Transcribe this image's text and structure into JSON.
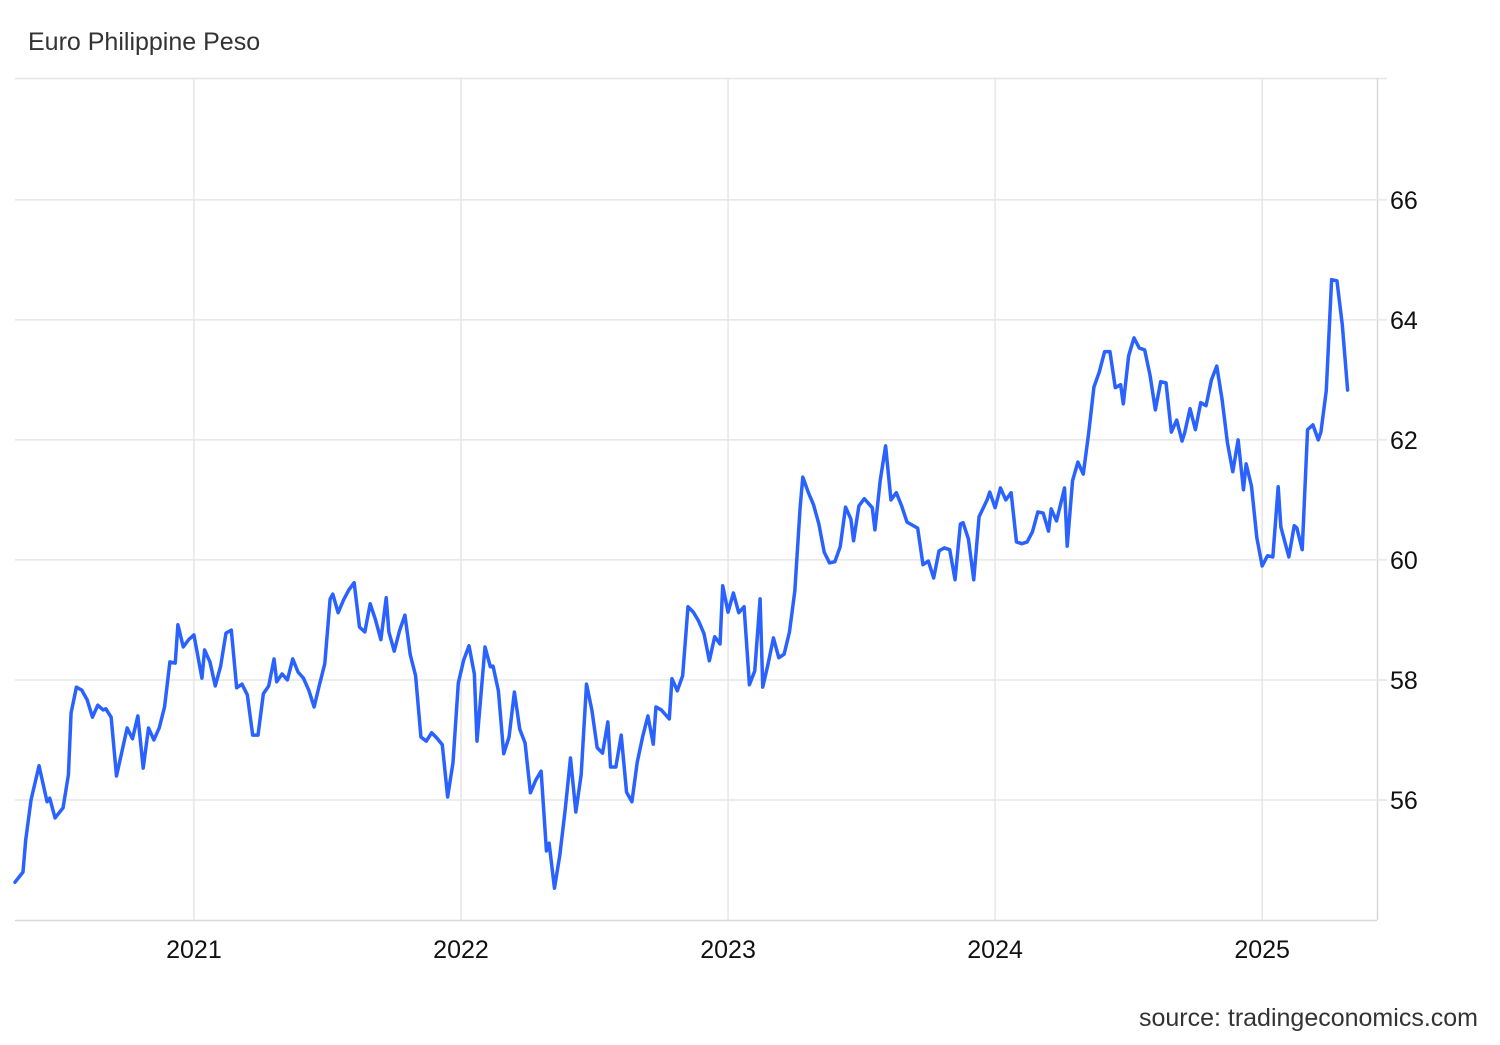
{
  "chart_data": {
    "type": "line",
    "title": "Euro Philippine Peso",
    "source": "source: tradingeconomics.com",
    "color": "#2962ff",
    "grid": true,
    "xlim": [
      2020.33,
      2025.43
    ],
    "xticks": [
      2021,
      2022,
      2023,
      2024,
      2025
    ],
    "ylim": [
      54,
      68.03
    ],
    "yticks": [
      56,
      58,
      60,
      62,
      64,
      66
    ],
    "x": [
      2020.33,
      2020.36,
      2020.37,
      2020.39,
      2020.42,
      2020.45,
      2020.46,
      2020.48,
      2020.51,
      2020.53,
      2020.54,
      2020.56,
      2020.58,
      2020.6,
      2020.62,
      2020.64,
      2020.66,
      2020.67,
      2020.69,
      2020.71,
      2020.73,
      2020.75,
      2020.77,
      2020.79,
      2020.81,
      2020.83,
      2020.85,
      2020.87,
      2020.89,
      2020.91,
      2020.93,
      2020.94,
      2020.96,
      2020.98,
      2021.0,
      2021.03,
      2021.04,
      2021.06,
      2021.08,
      2021.1,
      2021.12,
      2021.14,
      2021.16,
      2021.18,
      2021.2,
      2021.22,
      2021.24,
      2021.26,
      2021.28,
      2021.3,
      2021.31,
      2021.33,
      2021.35,
      2021.37,
      2021.39,
      2021.41,
      2021.43,
      2021.45,
      2021.47,
      2021.49,
      2021.51,
      2021.52,
      2021.54,
      2021.56,
      2021.58,
      2021.6,
      2021.62,
      2021.64,
      2021.66,
      2021.68,
      2021.7,
      2021.72,
      2021.73,
      2021.75,
      2021.77,
      2021.79,
      2021.81,
      2021.83,
      2021.85,
      2021.87,
      2021.89,
      2021.91,
      2021.93,
      2021.95,
      2021.97,
      2021.99,
      2022.01,
      2022.03,
      2022.05,
      2022.06,
      2022.09,
      2022.11,
      2022.12,
      2022.14,
      2022.16,
      2022.18,
      2022.2,
      2022.22,
      2022.24,
      2022.26,
      2022.28,
      2022.3,
      2022.32,
      2022.33,
      2022.35,
      2022.37,
      2022.39,
      2022.41,
      2022.43,
      2022.45,
      2022.47,
      2022.49,
      2022.51,
      2022.53,
      2022.55,
      2022.56,
      2022.58,
      2022.6,
      2022.62,
      2022.64,
      2022.66,
      2022.68,
      2022.7,
      2022.72,
      2022.73,
      2022.75,
      2022.78,
      2022.79,
      2022.81,
      2022.83,
      2022.85,
      2022.87,
      2022.89,
      2022.91,
      2022.93,
      2022.95,
      2022.97,
      2022.98,
      2023.0,
      2023.02,
      2023.04,
      2023.06,
      2023.08,
      2023.1,
      2023.12,
      2023.13,
      2023.15,
      2023.17,
      2023.19,
      2023.21,
      2023.23,
      2023.25,
      2023.27,
      2023.28,
      2023.3,
      2023.32,
      2023.34,
      2023.36,
      2023.38,
      2023.4,
      2023.42,
      2023.44,
      2023.46,
      2023.47,
      2023.49,
      2023.51,
      2023.54,
      2023.55,
      2023.57,
      2023.59,
      2023.61,
      2023.63,
      2023.65,
      2023.67,
      2023.69,
      2023.71,
      2023.73,
      2023.75,
      2023.77,
      2023.79,
      2023.81,
      2023.83,
      2023.85,
      2023.87,
      2023.88,
      2023.9,
      2023.92,
      2023.94,
      2023.97,
      2023.98,
      2024.0,
      2024.02,
      2024.04,
      2024.06,
      2024.08,
      2024.1,
      2024.12,
      2024.14,
      2024.16,
      2024.18,
      2024.2,
      2024.21,
      2024.23,
      2024.26,
      2024.27,
      2024.29,
      2024.31,
      2024.33,
      2024.35,
      2024.37,
      2024.39,
      2024.41,
      2024.43,
      2024.45,
      2024.47,
      2024.48,
      2024.5,
      2024.52,
      2024.54,
      2024.56,
      2024.58,
      2024.6,
      2024.62,
      2024.64,
      2024.66,
      2024.68,
      2024.7,
      2024.71,
      2024.73,
      2024.75,
      2024.77,
      2024.79,
      2024.81,
      2024.83,
      2024.85,
      2024.87,
      2024.89,
      2024.91,
      2024.93,
      2024.94,
      2024.96,
      2024.98,
      2025.0,
      2025.02,
      2025.04,
      2025.06,
      2025.07,
      2025.1,
      2025.12,
      2025.13,
      2025.15,
      2025.17,
      2025.19,
      2025.21,
      2025.22,
      2025.24,
      2025.26,
      2025.28,
      2025.3,
      2025.32
    ],
    "values": [
      54.63,
      54.8,
      55.33,
      56.0,
      56.57,
      55.97,
      56.03,
      55.7,
      55.87,
      56.42,
      57.45,
      57.88,
      57.83,
      57.67,
      57.38,
      57.58,
      57.5,
      57.52,
      57.38,
      56.4,
      56.8,
      57.2,
      57.02,
      57.4,
      56.53,
      57.2,
      57.0,
      57.2,
      57.55,
      58.3,
      58.28,
      58.92,
      58.55,
      58.67,
      58.75,
      58.03,
      58.5,
      58.3,
      57.9,
      58.23,
      58.78,
      58.83,
      57.87,
      57.93,
      57.75,
      57.08,
      57.08,
      57.77,
      57.9,
      58.35,
      57.97,
      58.1,
      58.0,
      58.35,
      58.13,
      58.03,
      57.83,
      57.55,
      57.92,
      58.27,
      59.35,
      59.43,
      59.12,
      59.33,
      59.5,
      59.62,
      58.88,
      58.8,
      59.27,
      59.0,
      58.67,
      59.37,
      58.8,
      58.48,
      58.82,
      59.08,
      58.42,
      58.07,
      57.05,
      56.98,
      57.12,
      57.03,
      56.92,
      56.05,
      56.62,
      57.95,
      58.33,
      58.57,
      58.1,
      56.98,
      58.55,
      58.22,
      58.23,
      57.82,
      56.77,
      57.05,
      57.8,
      57.18,
      56.95,
      56.12,
      56.33,
      56.48,
      55.15,
      55.28,
      54.53,
      55.08,
      55.83,
      56.7,
      55.8,
      56.42,
      57.93,
      57.5,
      56.87,
      56.78,
      57.3,
      56.55,
      56.55,
      57.08,
      56.13,
      55.97,
      56.63,
      57.05,
      57.4,
      56.93,
      57.55,
      57.5,
      57.35,
      58.02,
      57.82,
      58.07,
      59.22,
      59.13,
      58.98,
      58.77,
      58.32,
      58.72,
      58.6,
      59.57,
      59.13,
      59.45,
      59.12,
      59.22,
      57.92,
      58.15,
      59.35,
      57.88,
      58.27,
      58.7,
      58.37,
      58.43,
      58.8,
      59.48,
      60.88,
      61.38,
      61.13,
      60.92,
      60.6,
      60.13,
      59.95,
      59.97,
      60.22,
      60.88,
      60.68,
      60.32,
      60.9,
      61.02,
      60.87,
      60.5,
      61.33,
      61.9,
      61.0,
      61.12,
      60.9,
      60.63,
      60.58,
      60.53,
      59.92,
      59.98,
      59.7,
      60.15,
      60.2,
      60.17,
      59.67,
      60.6,
      60.62,
      60.35,
      59.67,
      60.72,
      61.0,
      61.13,
      60.87,
      61.2,
      61.0,
      61.12,
      60.3,
      60.27,
      60.3,
      60.47,
      60.8,
      60.78,
      60.48,
      60.85,
      60.65,
      61.2,
      60.23,
      61.32,
      61.63,
      61.43,
      62.1,
      62.88,
      63.13,
      63.47,
      63.47,
      62.87,
      62.92,
      62.6,
      63.4,
      63.7,
      63.53,
      63.5,
      63.08,
      62.5,
      62.97,
      62.95,
      62.13,
      62.33,
      61.98,
      62.12,
      62.52,
      62.17,
      62.62,
      62.57,
      63.0,
      63.23,
      62.67,
      61.95,
      61.47,
      62.0,
      61.17,
      61.6,
      61.23,
      60.37,
      59.9,
      60.07,
      60.05,
      61.22,
      60.55,
      60.05,
      60.57,
      60.53,
      60.17,
      62.17,
      62.25,
      62.0,
      62.13,
      62.82,
      64.67,
      64.65,
      63.92,
      62.83
    ]
  }
}
